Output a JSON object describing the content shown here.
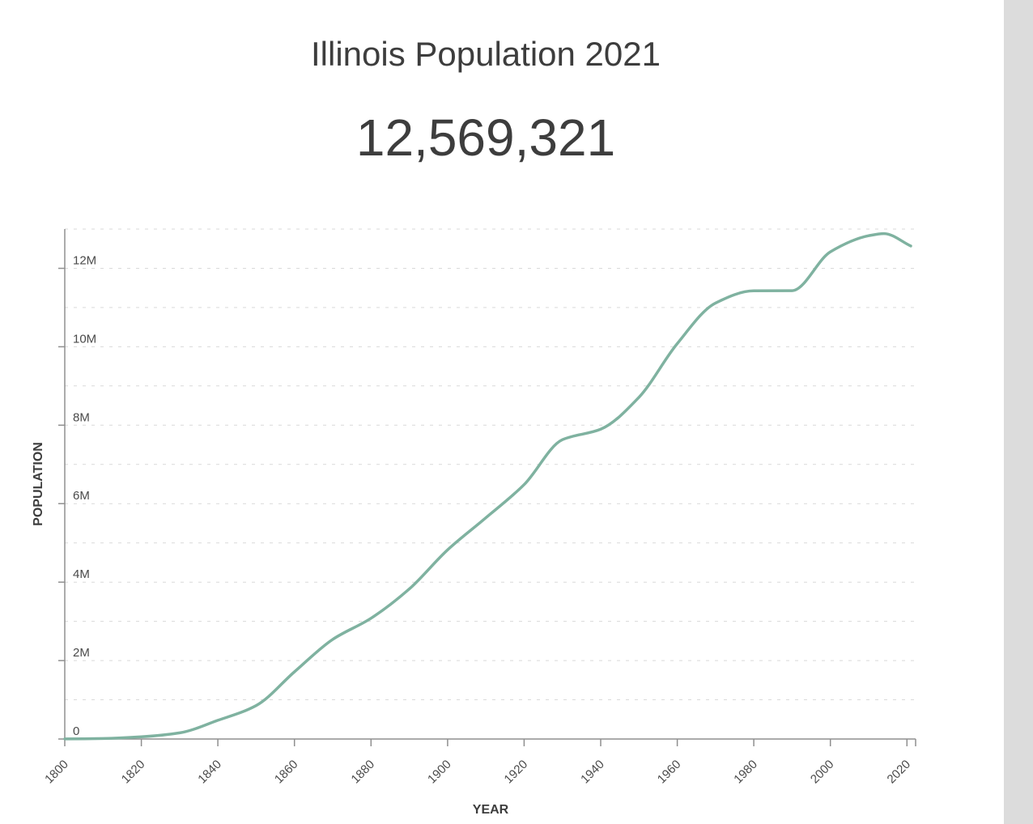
{
  "page": {
    "title": "Illinois Population 2021",
    "big_number": "12,569,321"
  },
  "chart_data": {
    "type": "line",
    "title": "Illinois Population 2021",
    "subtitle_value": "12,569,321",
    "xlabel": "YEAR",
    "ylabel": "POPULATION",
    "x": [
      1800,
      1810,
      1820,
      1830,
      1840,
      1850,
      1860,
      1870,
      1880,
      1890,
      1900,
      1910,
      1920,
      1930,
      1940,
      1950,
      1960,
      1970,
      1980,
      1990,
      2000,
      2010,
      2014,
      2021
    ],
    "values": [
      2458,
      12282,
      55211,
      157445,
      476183,
      851470,
      1711951,
      2539891,
      3077871,
      3826352,
      4821550,
      5638591,
      6485280,
      7630654,
      7897241,
      8712176,
      10081158,
      11113976,
      11426518,
      11430602,
      12419293,
      12830632,
      12885000,
      12569321
    ],
    "xlim": [
      1800,
      2021
    ],
    "ylim": [
      0,
      13000000
    ],
    "x_ticks": [
      1800,
      1820,
      1840,
      1860,
      1880,
      1900,
      1920,
      1940,
      1960,
      1980,
      2000,
      2020
    ],
    "y_ticks": [
      {
        "value": 0,
        "label": "0"
      },
      {
        "value": 2000000,
        "label": "2M"
      },
      {
        "value": 4000000,
        "label": "4M"
      },
      {
        "value": 6000000,
        "label": "6M"
      },
      {
        "value": 8000000,
        "label": "8M"
      },
      {
        "value": 10000000,
        "label": "10M"
      },
      {
        "value": 12000000,
        "label": "12M"
      }
    ],
    "grid_values": [
      1000000,
      2000000,
      3000000,
      4000000,
      5000000,
      6000000,
      7000000,
      8000000,
      9000000,
      10000000,
      11000000,
      12000000,
      13000000
    ],
    "grid": "dashed-horizontal",
    "legend": "none",
    "line_color": "#7fb2a0",
    "grid_color": "#d9d9d9",
    "axis_color": "#8f8f8f",
    "tick_label_color": "#4a4a4a",
    "axis_title_color": "#3d3d3d"
  }
}
